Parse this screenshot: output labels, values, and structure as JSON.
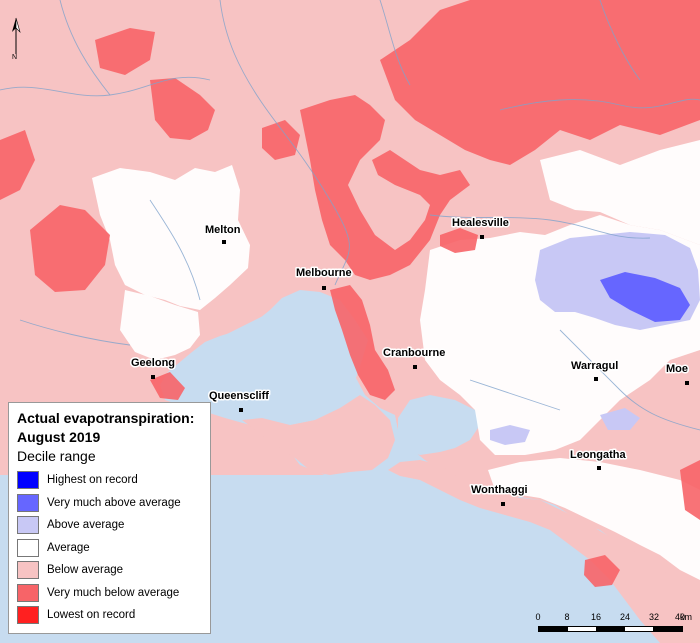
{
  "colors": {
    "highest_on_record": "#0000ff",
    "very_much_above_average": "#6666ff",
    "above_average": "#c8c8f5",
    "average": "#ffffff",
    "below_average": "#f7c3c3",
    "very_much_below_average": "#f76468",
    "lowest_on_record": "#ff2020",
    "sea": "#c7dcf0",
    "river": "#7fa3cc"
  },
  "legend": {
    "title": "Actual evapotranspiration:",
    "period": "August 2019",
    "subtitle": "Decile range",
    "items": [
      {
        "label": "Highest on record",
        "color": "#0000ff"
      },
      {
        "label": "Very much above average",
        "color": "#6666ff"
      },
      {
        "label": "Above average",
        "color": "#c8c8f5"
      },
      {
        "label": "Average",
        "color": "#ffffff"
      },
      {
        "label": "Below average",
        "color": "#f7c3c3"
      },
      {
        "label": "Very much below average",
        "color": "#f76468"
      },
      {
        "label": "Lowest on record",
        "color": "#ff2020"
      }
    ]
  },
  "towns": [
    {
      "name": "Melton"
    },
    {
      "name": "Melbourne"
    },
    {
      "name": "Healesville"
    },
    {
      "name": "Geelong"
    },
    {
      "name": "Queenscliff"
    },
    {
      "name": "Cranbourne"
    },
    {
      "name": "Warragul"
    },
    {
      "name": "Moe"
    },
    {
      "name": "Leongatha"
    },
    {
      "name": "Wonthaggi"
    }
  ],
  "scale": {
    "ticks": [
      "0",
      "8",
      "16",
      "24",
      "32",
      "40"
    ],
    "unit": "km"
  },
  "north_label": "N"
}
